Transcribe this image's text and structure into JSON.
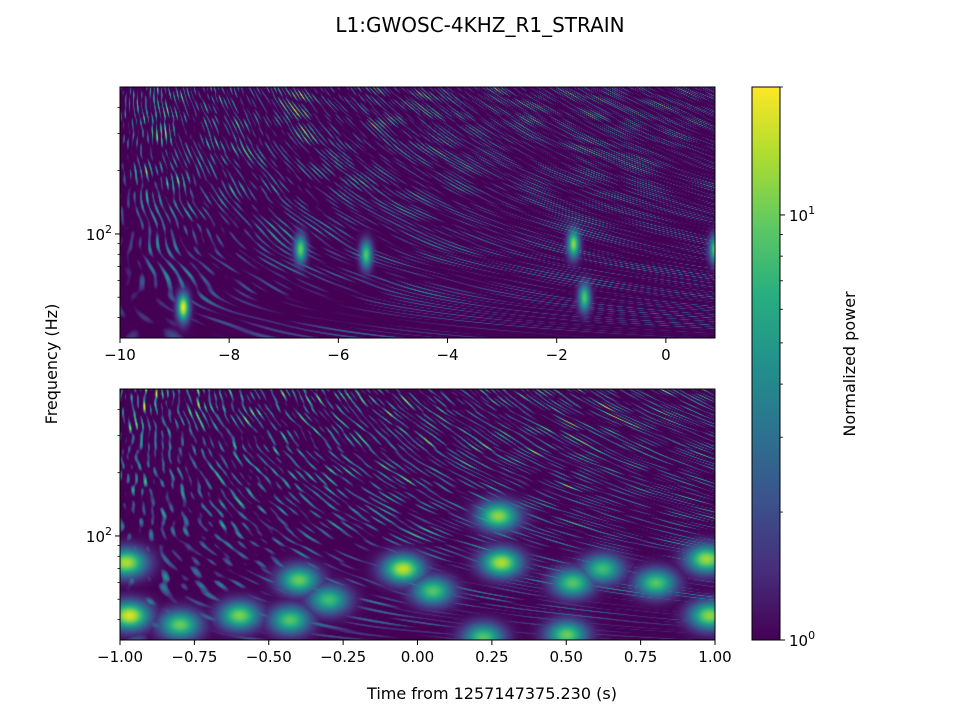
{
  "chart_data": {
    "type": "heatmap",
    "title": "L1:GWOSC-4KHZ_R1_STRAIN",
    "ylabel": "Frequency (Hz)",
    "colorbar": {
      "label": "Normalized power",
      "scale": "log",
      "range": [
        1,
        20
      ],
      "colormap": "viridis",
      "ticks": [
        {
          "value": 1,
          "label": "10",
          "exp": "0"
        },
        {
          "value": 10,
          "label": "10",
          "exp": "1"
        }
      ],
      "minor_ticks": [
        2,
        3,
        4,
        5,
        6,
        7,
        8,
        9,
        20
      ]
    },
    "panels": [
      {
        "yscale": "log",
        "ylim": [
          32,
          500
        ],
        "yticks": [
          {
            "value": 100,
            "label": "10",
            "exp": "2"
          }
        ],
        "xlim": [
          -10,
          0.9
        ],
        "xticks": [
          -10,
          -8,
          -6,
          -4,
          -2,
          0
        ],
        "xticklabels": [
          "−10",
          "−8",
          "−6",
          "−4",
          "−2",
          "0"
        ],
        "hotspots": [
          {
            "t": -8.85,
            "f": 45,
            "power": 18
          },
          {
            "t": -6.7,
            "f": 85,
            "power": 10
          },
          {
            "t": -5.5,
            "f": 80,
            "power": 9
          },
          {
            "t": -1.7,
            "f": 90,
            "power": 12
          },
          {
            "t": -1.5,
            "f": 50,
            "power": 9
          },
          {
            "t": 0.9,
            "f": 85,
            "power": 11
          }
        ]
      },
      {
        "yscale": "log",
        "ylim": [
          32,
          500
        ],
        "yticks": [
          {
            "value": 100,
            "label": "10",
            "exp": "2"
          }
        ],
        "xlim": [
          -1,
          1
        ],
        "xticks": [
          -1,
          -0.75,
          -0.5,
          -0.25,
          0,
          0.25,
          0.5,
          0.75,
          1
        ],
        "xticklabels": [
          "−1.00",
          "−0.75",
          "−0.50",
          "−0.25",
          "0.00",
          "0.25",
          "0.50",
          "0.75",
          "1.00"
        ],
        "xlabel": "Time from 1257147375.230 (s)",
        "hotspots": [
          {
            "t": -0.98,
            "f": 75,
            "power": 14
          },
          {
            "t": -0.97,
            "f": 42,
            "power": 17
          },
          {
            "t": -0.8,
            "f": 38,
            "power": 10
          },
          {
            "t": -0.6,
            "f": 42,
            "power": 11
          },
          {
            "t": -0.43,
            "f": 40,
            "power": 9
          },
          {
            "t": -0.4,
            "f": 62,
            "power": 10
          },
          {
            "t": -0.3,
            "f": 50,
            "power": 8
          },
          {
            "t": -0.05,
            "f": 70,
            "power": 15
          },
          {
            "t": 0.05,
            "f": 55,
            "power": 9
          },
          {
            "t": 0.22,
            "f": 33,
            "power": 9
          },
          {
            "t": 0.28,
            "f": 75,
            "power": 14
          },
          {
            "t": 0.27,
            "f": 125,
            "power": 12
          },
          {
            "t": 0.5,
            "f": 34,
            "power": 10
          },
          {
            "t": 0.52,
            "f": 60,
            "power": 9
          },
          {
            "t": 0.62,
            "f": 70,
            "power": 8
          },
          {
            "t": 0.8,
            "f": 60,
            "power": 9
          },
          {
            "t": 0.97,
            "f": 78,
            "power": 13
          },
          {
            "t": 0.98,
            "f": 42,
            "power": 12
          }
        ]
      }
    ]
  }
}
